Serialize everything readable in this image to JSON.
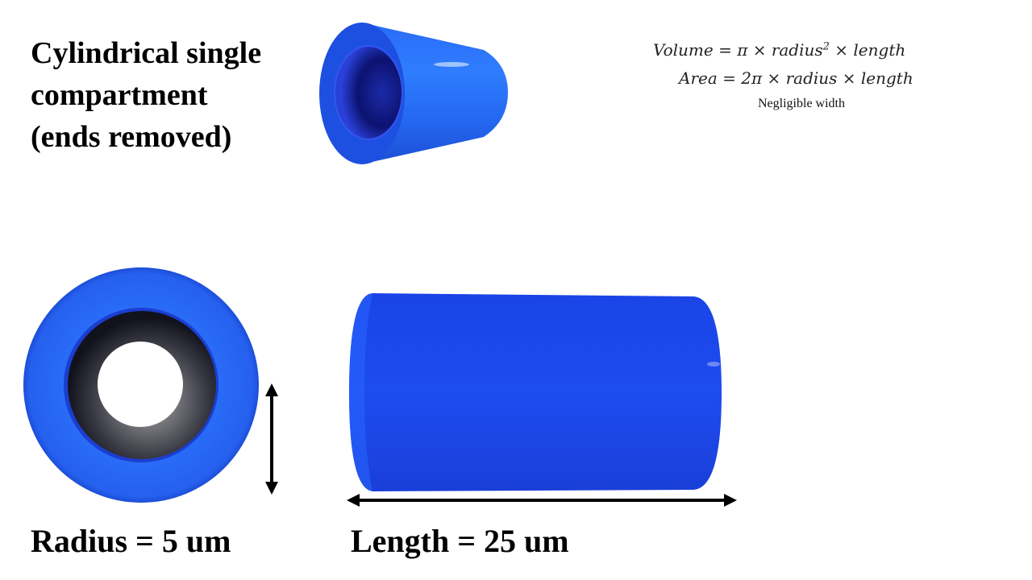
{
  "title": {
    "line1": "Cylindrical single",
    "line2": "compartment",
    "line3": "(ends removed)"
  },
  "formulas": {
    "volume_lhs": "Volume = ",
    "volume_rhs": "π × radius",
    "volume_exp": "2",
    "volume_tail": " × length",
    "area": "Area = 2π × radius × length",
    "note": "Negligible  width"
  },
  "labels": {
    "radius": "Radius = 5 um",
    "length": "Length = 25 um"
  },
  "colors": {
    "tube_blue": "#1e4fe8",
    "tube_light": "#2f7bff",
    "tube_dark": "#0e2fb0",
    "inner_dark": "#2a2a3a",
    "arrow": "#000000"
  },
  "icons": {
    "radius_arrow": "vertical-double-arrow",
    "length_arrow": "horizontal-double-arrow"
  }
}
